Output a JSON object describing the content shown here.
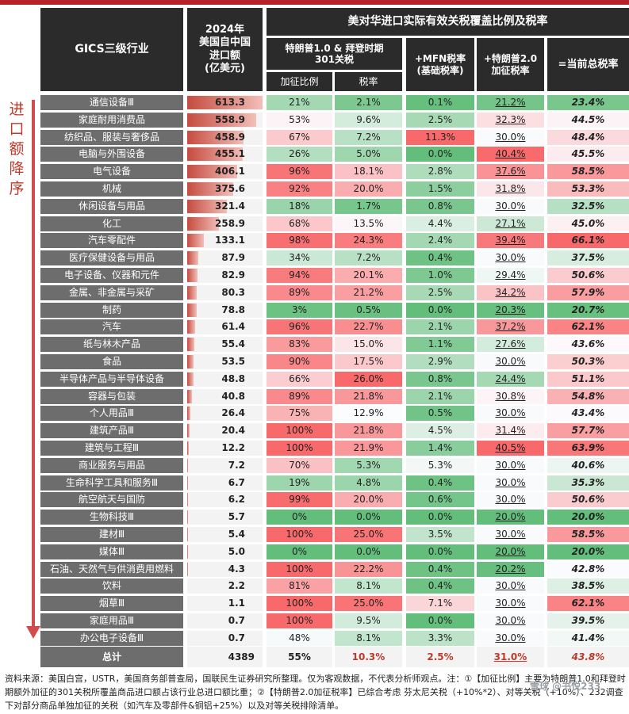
{
  "header": {
    "industry": "GICS三级行业",
    "imports_l1": "2024年",
    "imports_l2": "美国自中国",
    "imports_l3": "进口额",
    "imports_l4": "(亿美元)",
    "group_title": "美对华进口实际有效关税覆盖比例及税率",
    "trump1_l1": "特朗普1.0 & 拜登时期",
    "trump1_l2": "301关税",
    "mfn_l1": "+MFN税率",
    "mfn_l2": "(基础税率)",
    "trump2_l1": "+特朗普2.0",
    "trump2_l2": "加征税率",
    "total_rate": "=当前总税率",
    "sub_ratio": "加征比例",
    "sub_rate": "税率"
  },
  "side_label": "进口额降序",
  "colors": {
    "header_bg": "#2b2b2b",
    "name_bg": "#6d6d6d",
    "red": "#c0392b",
    "green": "#4caf50"
  },
  "max_import": 613.3,
  "rows": [
    {
      "name": "通信设备Ⅲ",
      "imp": "613.3",
      "r": "21%",
      "rr": "2.1%",
      "mfn": "0.1%",
      "t2": "21.2%",
      "tot": "23.4%",
      "rn": 21,
      "rrn": 2.1,
      "mfnn": 0.1,
      "t2n": 21.2,
      "totn": 23.4
    },
    {
      "name": "家庭耐用消费品",
      "imp": "558.9",
      "r": "53%",
      "rr": "9.6%",
      "mfn": "2.5%",
      "t2": "32.3%",
      "tot": "44.5%",
      "rn": 53,
      "rrn": 9.6,
      "mfnn": 2.5,
      "t2n": 32.3,
      "totn": 44.5
    },
    {
      "name": "纺织品、服装与奢侈品",
      "imp": "458.9",
      "r": "67%",
      "rr": "7.2%",
      "mfn": "11.3%",
      "t2": "30.0%",
      "tot": "48.4%",
      "rn": 67,
      "rrn": 7.2,
      "mfnn": 11.3,
      "t2n": 30.0,
      "totn": 48.4
    },
    {
      "name": "电脑与外围设备",
      "imp": "455.1",
      "r": "26%",
      "rr": "5.0%",
      "mfn": "0.0%",
      "t2": "40.4%",
      "tot": "45.5%",
      "rn": 26,
      "rrn": 5.0,
      "mfnn": 0.0,
      "t2n": 40.4,
      "totn": 45.5
    },
    {
      "name": "电气设备",
      "imp": "406.1",
      "r": "96%",
      "rr": "18.1%",
      "mfn": "2.8%",
      "t2": "37.6%",
      "tot": "58.5%",
      "rn": 96,
      "rrn": 18.1,
      "mfnn": 2.8,
      "t2n": 37.6,
      "totn": 58.5
    },
    {
      "name": "机械",
      "imp": "375.6",
      "r": "92%",
      "rr": "20.0%",
      "mfn": "1.5%",
      "t2": "31.8%",
      "tot": "53.3%",
      "rn": 92,
      "rrn": 20.0,
      "mfnn": 1.5,
      "t2n": 31.8,
      "totn": 53.3
    },
    {
      "name": "休闲设备与用品",
      "imp": "321.4",
      "r": "18%",
      "rr": "1.7%",
      "mfn": "0.8%",
      "t2": "30.0%",
      "tot": "32.5%",
      "rn": 18,
      "rrn": 1.7,
      "mfnn": 0.8,
      "t2n": 30.0,
      "totn": 32.5
    },
    {
      "name": "化工",
      "imp": "258.9",
      "r": "68%",
      "rr": "13.5%",
      "mfn": "4.4%",
      "t2": "27.1%",
      "tot": "45.0%",
      "rn": 68,
      "rrn": 13.5,
      "mfnn": 4.4,
      "t2n": 27.1,
      "totn": 45.0
    },
    {
      "name": "汽车零配件",
      "imp": "133.1",
      "r": "98%",
      "rr": "24.3%",
      "mfn": "2.4%",
      "t2": "39.4%",
      "tot": "66.1%",
      "rn": 98,
      "rrn": 24.3,
      "mfnn": 2.4,
      "t2n": 39.4,
      "totn": 66.1
    },
    {
      "name": "医疗保健设备与用品",
      "imp": "87.9",
      "r": "34%",
      "rr": "7.2%",
      "mfn": "0.4%",
      "t2": "30.0%",
      "tot": "37.5%",
      "rn": 34,
      "rrn": 7.2,
      "mfnn": 0.4,
      "t2n": 30.0,
      "totn": 37.5
    },
    {
      "name": "电子设备、仪器和元件",
      "imp": "82.9",
      "r": "94%",
      "rr": "20.1%",
      "mfn": "1.0%",
      "t2": "29.4%",
      "tot": "50.6%",
      "rn": 94,
      "rrn": 20.1,
      "mfnn": 1.0,
      "t2n": 29.4,
      "totn": 50.6
    },
    {
      "name": "金属、非金属与采矿",
      "imp": "80.3",
      "r": "89%",
      "rr": "21.2%",
      "mfn": "2.5%",
      "t2": "34.2%",
      "tot": "57.9%",
      "rn": 89,
      "rrn": 21.2,
      "mfnn": 2.5,
      "t2n": 34.2,
      "totn": 57.9
    },
    {
      "name": "制药",
      "imp": "78.8",
      "r": "3%",
      "rr": "0.5%",
      "mfn": "0.0%",
      "t2": "20.3%",
      "tot": "20.7%",
      "rn": 3,
      "rrn": 0.5,
      "mfnn": 0.0,
      "t2n": 20.3,
      "totn": 20.7
    },
    {
      "name": "汽车",
      "imp": "61.4",
      "r": "96%",
      "rr": "22.7%",
      "mfn": "2.1%",
      "t2": "37.2%",
      "tot": "62.1%",
      "rn": 96,
      "rrn": 22.7,
      "mfnn": 2.1,
      "t2n": 37.2,
      "totn": 62.1
    },
    {
      "name": "纸与林木产品",
      "imp": "55.4",
      "r": "83%",
      "rr": "15.0%",
      "mfn": "1.1%",
      "t2": "27.6%",
      "tot": "43.6%",
      "rn": 83,
      "rrn": 15.0,
      "mfnn": 1.1,
      "t2n": 27.6,
      "totn": 43.6
    },
    {
      "name": "食品",
      "imp": "53.5",
      "r": "90%",
      "rr": "17.5%",
      "mfn": "2.9%",
      "t2": "30.0%",
      "tot": "50.3%",
      "rn": 90,
      "rrn": 17.5,
      "mfnn": 2.9,
      "t2n": 30.0,
      "totn": 50.3
    },
    {
      "name": "半导体产品与半导体设备",
      "imp": "48.8",
      "r": "66%",
      "rr": "26.0%",
      "mfn": "0.8%",
      "t2": "24.4%",
      "tot": "51.1%",
      "rn": 66,
      "rrn": 26.0,
      "mfnn": 0.8,
      "t2n": 24.4,
      "totn": 51.1
    },
    {
      "name": "容器与包装",
      "imp": "40.8",
      "r": "89%",
      "rr": "21.8%",
      "mfn": "2.1%",
      "t2": "30.8%",
      "tot": "54.8%",
      "rn": 89,
      "rrn": 21.8,
      "mfnn": 2.1,
      "t2n": 30.8,
      "totn": 54.8
    },
    {
      "name": "个人用品Ⅲ",
      "imp": "26.4",
      "r": "75%",
      "rr": "12.9%",
      "mfn": "0.5%",
      "t2": "30.0%",
      "tot": "43.4%",
      "rn": 75,
      "rrn": 12.9,
      "mfnn": 0.5,
      "t2n": 30.0,
      "totn": 43.4
    },
    {
      "name": "建筑产品Ⅲ",
      "imp": "20.4",
      "r": "100%",
      "rr": "21.8%",
      "mfn": "4.5%",
      "t2": "31.4%",
      "tot": "57.7%",
      "rn": 100,
      "rrn": 21.8,
      "mfnn": 4.5,
      "t2n": 31.4,
      "totn": 57.7
    },
    {
      "name": "建筑与工程Ⅲ",
      "imp": "12.2",
      "r": "100%",
      "rr": "21.9%",
      "mfn": "1.4%",
      "t2": "40.5%",
      "tot": "63.9%",
      "rn": 100,
      "rrn": 21.9,
      "mfnn": 1.4,
      "t2n": 40.5,
      "totn": 63.9
    },
    {
      "name": "商业服务与用品",
      "imp": "7.2",
      "r": "70%",
      "rr": "5.3%",
      "mfn": "5.3%",
      "t2": "30.0%",
      "tot": "40.6%",
      "rn": 70,
      "rrn": 5.3,
      "mfnn": 5.3,
      "t2n": 30.0,
      "totn": 40.6
    },
    {
      "name": "生命科学工具和服务Ⅲ",
      "imp": "6.7",
      "r": "19%",
      "rr": "4.8%",
      "mfn": "0.4%",
      "t2": "30.0%",
      "tot": "35.3%",
      "rn": 19,
      "rrn": 4.8,
      "mfnn": 0.4,
      "t2n": 30.0,
      "totn": 35.3
    },
    {
      "name": "航空航天与国防",
      "imp": "6.2",
      "r": "99%",
      "rr": "20.0%",
      "mfn": "0.6%",
      "t2": "30.0%",
      "tot": "50.6%",
      "rn": 99,
      "rrn": 20.0,
      "mfnn": 0.6,
      "t2n": 30.0,
      "totn": 50.6
    },
    {
      "name": "生物科技Ⅲ",
      "imp": "5.7",
      "r": "0%",
      "rr": "0.0%",
      "mfn": "0.0%",
      "t2": "20.0%",
      "tot": "20.0%",
      "rn": 0,
      "rrn": 0.0,
      "mfnn": 0.0,
      "t2n": 20.0,
      "totn": 20.0
    },
    {
      "name": "建材Ⅲ",
      "imp": "5.4",
      "r": "100%",
      "rr": "25.0%",
      "mfn": "3.5%",
      "t2": "30.0%",
      "tot": "58.5%",
      "rn": 100,
      "rrn": 25.0,
      "mfnn": 3.5,
      "t2n": 30.0,
      "totn": 58.5
    },
    {
      "name": "媒体Ⅲ",
      "imp": "5.0",
      "r": "0%",
      "rr": "0.0%",
      "mfn": "0.0%",
      "t2": "20.0%",
      "tot": "20.0%",
      "rn": 0,
      "rrn": 0.0,
      "mfnn": 0.0,
      "t2n": 20.0,
      "totn": 20.0
    },
    {
      "name": "石油、天然气与供消费用燃料",
      "imp": "4.3",
      "r": "100%",
      "rr": "22.2%",
      "mfn": "0.4%",
      "t2": "20.2%",
      "tot": "42.8%",
      "rn": 100,
      "rrn": 22.2,
      "mfnn": 0.4,
      "t2n": 20.2,
      "totn": 42.8
    },
    {
      "name": "饮料",
      "imp": "2.2",
      "r": "81%",
      "rr": "8.1%",
      "mfn": "0.4%",
      "t2": "30.0%",
      "tot": "38.5%",
      "rn": 81,
      "rrn": 8.1,
      "mfnn": 0.4,
      "t2n": 30.0,
      "totn": 38.5
    },
    {
      "name": "烟草Ⅲ",
      "imp": "1.1",
      "r": "100%",
      "rr": "25.0%",
      "mfn": "7.1%",
      "t2": "30.0%",
      "tot": "62.1%",
      "rn": 100,
      "rrn": 25.0,
      "mfnn": 7.1,
      "t2n": 30.0,
      "totn": 62.1
    },
    {
      "name": "家庭用品Ⅲ",
      "imp": "0.7",
      "r": "100%",
      "rr": "9.5%",
      "mfn": "0.0%",
      "t2": "30.0%",
      "tot": "39.5%",
      "rn": 100,
      "rrn": 9.5,
      "mfnn": 0.0,
      "t2n": 30.0,
      "totn": 39.5
    },
    {
      "name": "办公电子设备Ⅲ",
      "imp": "0.7",
      "r": "48%",
      "rr": "8.1%",
      "mfn": "3.3%",
      "t2": "30.0%",
      "tot": "41.4%",
      "rn": 48,
      "rrn": 8.1,
      "mfnn": 3.3,
      "t2n": 30.0,
      "totn": 41.4
    }
  ],
  "total": {
    "name": "总计",
    "imp": "4389",
    "r": "55%",
    "rr": "10.3%",
    "mfn": "2.5%",
    "t2": "31.0%",
    "tot": "43.8%"
  },
  "note": "资料来源：美国白宫，USTR，美国商务部普查局，国联民生证券研究所整理。仅为客观数据，不代表分析师观点。注：①【加征比例】主要为特朗普1.0和拜登时期额外加征的301关税所覆盖商品进口额占该行业总进口额比重；②【特朗普2.0加征税率】已综合考虑 芬太尼关税（+10%*2）、对等关税（+10%）、232调查下对部分商品单独加征的关税（如汽车及零部件&铜铝+25%）以及对等关税排除清单。",
  "watermark": "雪球 @书悦233"
}
